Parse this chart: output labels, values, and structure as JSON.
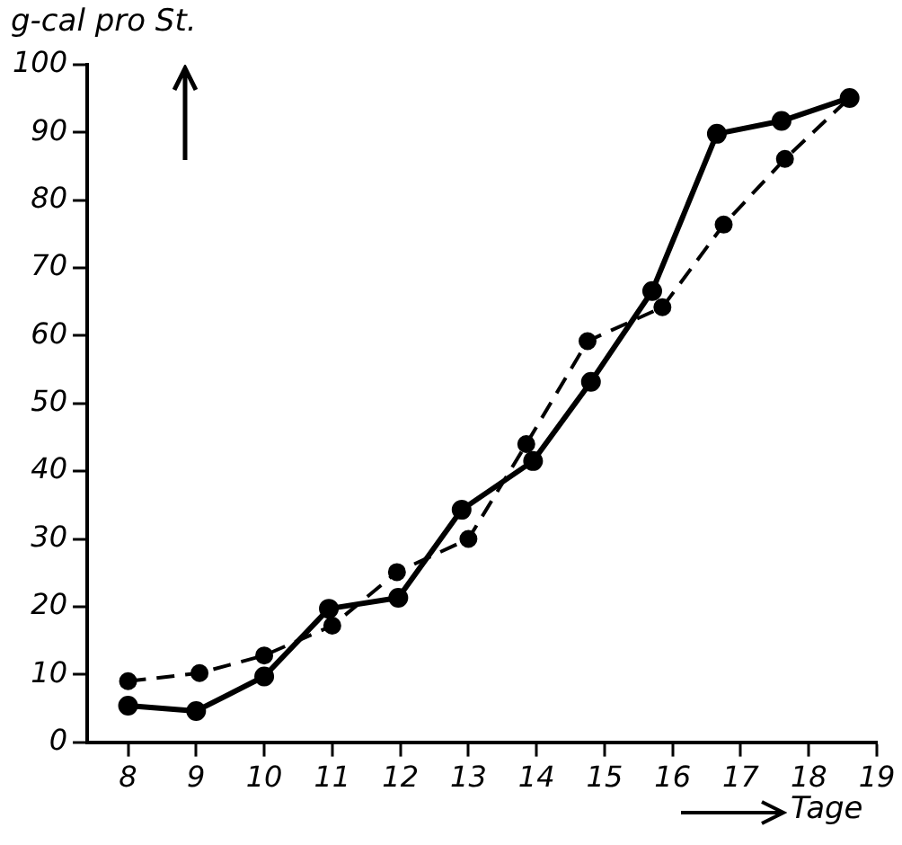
{
  "chart_data": {
    "type": "line",
    "ylabel": "g-cal pro St.",
    "xlabel": "Tage",
    "xlim": [
      7.4,
      19
    ],
    "ylim": [
      0,
      100
    ],
    "xticks": [
      8,
      9,
      10,
      11,
      12,
      13,
      14,
      15,
      16,
      17,
      18,
      19
    ],
    "yticks": [
      0,
      10,
      20,
      30,
      40,
      50,
      60,
      70,
      80,
      90,
      100
    ],
    "grid": false,
    "legend": false,
    "marker": "circle",
    "series": [
      {
        "color": "#000000",
        "line_style": "solid",
        "x": [
          8,
          9,
          10,
          10.95,
          11.97,
          12.9,
          13.95,
          14.8,
          15.7,
          16.65,
          17.6,
          18.6
        ],
        "values": [
          5.4,
          4.6,
          9.7,
          19.7,
          21.3,
          34.3,
          41.5,
          53.2,
          66.6,
          89.8,
          91.7,
          95.1
        ]
      },
      {
        "color": "#000000",
        "line_style": "dashed",
        "x": [
          8,
          9.05,
          10,
          11,
          11.95,
          13,
          13.85,
          14.75,
          15.85,
          16.75,
          17.65,
          18.6
        ],
        "values": [
          9.0,
          10.2,
          12.8,
          17.2,
          25.1,
          30,
          44,
          59.2,
          64.2,
          76.4,
          86.1,
          95.1
        ]
      }
    ]
  }
}
